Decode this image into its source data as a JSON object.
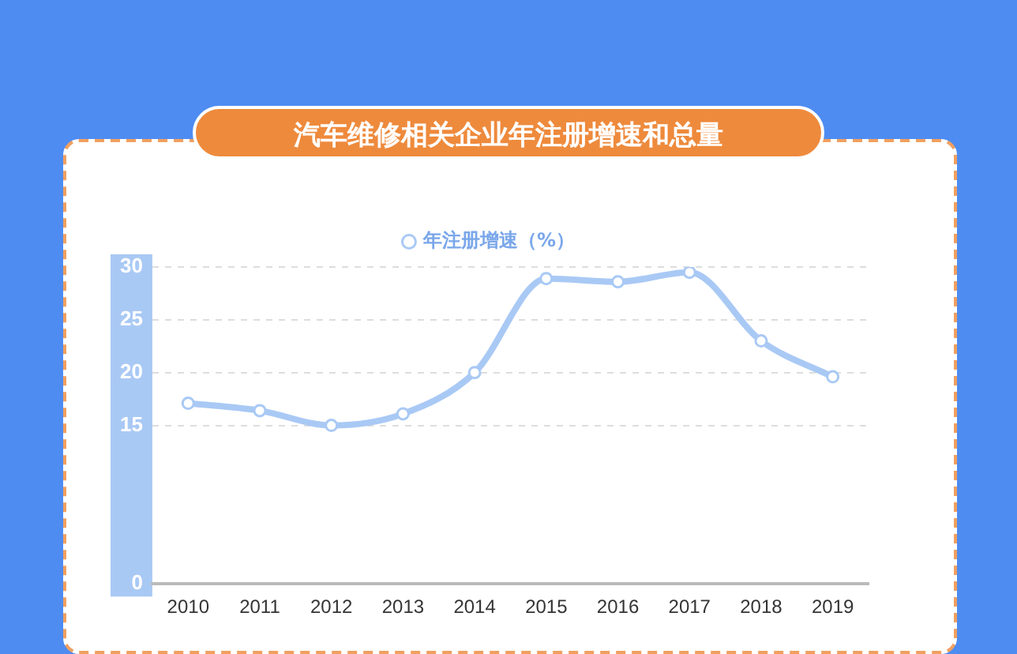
{
  "chart_data": {
    "type": "line",
    "title": "汽车维修相关企业年注册增速和总量",
    "categories": [
      "2010",
      "2011",
      "2012",
      "2013",
      "2014",
      "2015",
      "2016",
      "2017",
      "2018",
      "2019"
    ],
    "series": [
      {
        "name": "年注册增速（%）",
        "color": "#a9c9f5",
        "values": [
          17.1,
          16.4,
          15,
          16.1,
          20,
          28.9,
          28.6,
          29.5,
          23,
          19.6
        ]
      }
    ],
    "ylim": [
      0,
      30
    ],
    "yticks": [
      0,
      15,
      20,
      25,
      30
    ],
    "grid": "y",
    "legend": "top",
    "marker": "circle",
    "line_style": "solid"
  }
}
